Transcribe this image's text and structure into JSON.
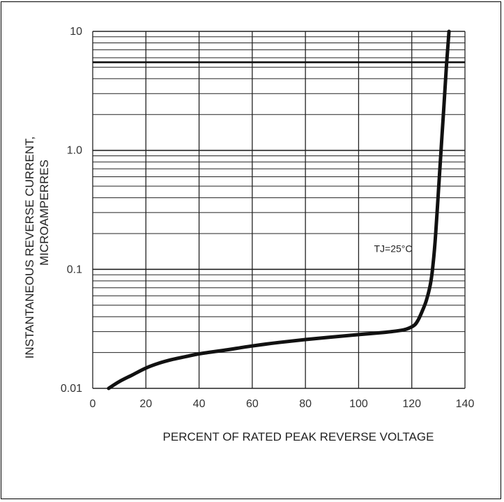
{
  "chart_data": {
    "type": "line",
    "title": "",
    "xlabel": "PERCENT OF RATED PEAK REVERSE VOLTAGE",
    "ylabel_line1": "INSTANTANEOUS REVERSE CURRENT,",
    "ylabel_line2": "MICROAMPERRES",
    "xlim": [
      0,
      140
    ],
    "ylim": [
      0.01,
      10
    ],
    "yscale": "log",
    "grid": true,
    "x_ticks": [
      0,
      20,
      40,
      60,
      80,
      100,
      120,
      140
    ],
    "x_tick_labels": [
      "0",
      "20",
      "40",
      "60",
      "80",
      "100",
      "120",
      "140"
    ],
    "y_ticks": [
      0.01,
      0.1,
      1.0,
      10
    ],
    "y_tick_labels": [
      "0.01",
      "0.1",
      "1.0",
      "10"
    ],
    "reference_line_y": 5.5,
    "annotation": {
      "text": "TJ=25°C",
      "x": 113,
      "y": 0.14
    },
    "series": [
      {
        "x": [
          6,
          10,
          15,
          20,
          25,
          30,
          35,
          40,
          50,
          60,
          70,
          80,
          90,
          100,
          110,
          115,
          118,
          121,
          122.5,
          124,
          125.5,
          127,
          128,
          129,
          130,
          131,
          132,
          133,
          134
        ],
        "y": [
          0.01,
          0.0114,
          0.013,
          0.0148,
          0.0163,
          0.0175,
          0.0185,
          0.0195,
          0.021,
          0.0227,
          0.0243,
          0.0257,
          0.027,
          0.0283,
          0.0296,
          0.0305,
          0.0315,
          0.034,
          0.038,
          0.045,
          0.055,
          0.075,
          0.11,
          0.2,
          0.45,
          1.0,
          2.2,
          5.0,
          10
        ]
      }
    ]
  }
}
